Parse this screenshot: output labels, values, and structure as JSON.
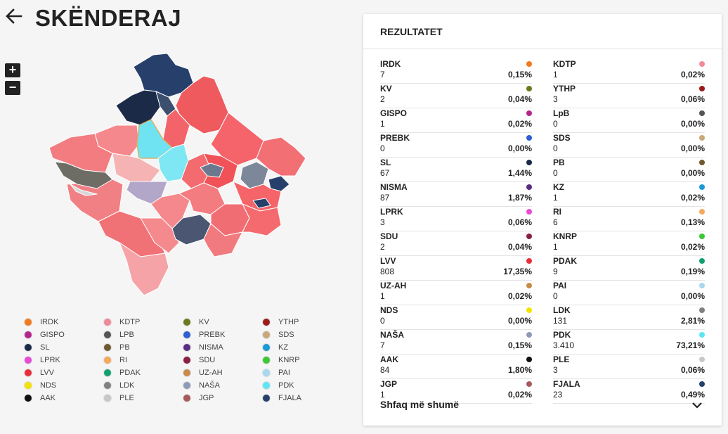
{
  "header": {
    "title": "SKËNDERAJ"
  },
  "zoom": {
    "in_label": "+",
    "out_label": "−"
  },
  "results": {
    "title": "REZULTATET",
    "show_more": "Shfaq më shumë",
    "left": [
      {
        "name": "IRDK",
        "votes": "7",
        "pct": "0,15%",
        "color": "#f07a1d"
      },
      {
        "name": "KV",
        "votes": "2",
        "pct": "0,04%",
        "color": "#6b7a1c"
      },
      {
        "name": "GISPO",
        "votes": "1",
        "pct": "0,02%",
        "color": "#b3268c"
      },
      {
        "name": "PREBK",
        "votes": "0",
        "pct": "0,00%",
        "color": "#2e5fd4"
      },
      {
        "name": "SL",
        "votes": "67",
        "pct": "1,44%",
        "color": "#1b2b47"
      },
      {
        "name": "NISMA",
        "votes": "87",
        "pct": "1,87%",
        "color": "#5b2d82"
      },
      {
        "name": "LPRK",
        "votes": "3",
        "pct": "0,06%",
        "color": "#e84bd8"
      },
      {
        "name": "SDU",
        "votes": "2",
        "pct": "0,04%",
        "color": "#8a1f45"
      },
      {
        "name": "LVV",
        "votes": "808",
        "pct": "17,35%",
        "color": "#e8303a"
      },
      {
        "name": "UZ-AH",
        "votes": "1",
        "pct": "0,02%",
        "color": "#c98b4a"
      },
      {
        "name": "NDS",
        "votes": "0",
        "pct": "0,00%",
        "color": "#f3e300"
      },
      {
        "name": "NAŠA",
        "votes": "7",
        "pct": "0,15%",
        "color": "#8e9bb8"
      },
      {
        "name": "AAK",
        "votes": "84",
        "pct": "1,80%",
        "color": "#111111"
      },
      {
        "name": "JGP",
        "votes": "1",
        "pct": "0,02%",
        "color": "#a85a5a"
      }
    ],
    "right": [
      {
        "name": "KDTP",
        "votes": "1",
        "pct": "0,02%",
        "color": "#f08a99"
      },
      {
        "name": "YTHP",
        "votes": "3",
        "pct": "0,06%",
        "color": "#9b1b1b"
      },
      {
        "name": "LpB",
        "votes": "0",
        "pct": "0,00%",
        "color": "#555555"
      },
      {
        "name": "SDS",
        "votes": "0",
        "pct": "0,00%",
        "color": "#c9a77a"
      },
      {
        "name": "PB",
        "votes": "0",
        "pct": "0,00%",
        "color": "#6e5a2e"
      },
      {
        "name": "KZ",
        "votes": "1",
        "pct": "0,02%",
        "color": "#1a9ad6"
      },
      {
        "name": "RI",
        "votes": "6",
        "pct": "0,13%",
        "color": "#f7a85a"
      },
      {
        "name": "KNRP",
        "votes": "1",
        "pct": "0,02%",
        "color": "#3cc832"
      },
      {
        "name": "PDAK",
        "votes": "9",
        "pct": "0,19%",
        "color": "#12a070"
      },
      {
        "name": "PAI",
        "votes": "0",
        "pct": "0,00%",
        "color": "#a8d8f0"
      },
      {
        "name": "LDK",
        "votes": "131",
        "pct": "2,81%",
        "color": "#808080"
      },
      {
        "name": "PDK",
        "votes": "3.410",
        "pct": "73,21%",
        "color": "#5ce6f5"
      },
      {
        "name": "PLE",
        "votes": "3",
        "pct": "0,06%",
        "color": "#c8c8c8"
      },
      {
        "name": "FJALA",
        "votes": "23",
        "pct": "0,49%",
        "color": "#26406b"
      }
    ]
  },
  "legend": [
    {
      "label": "IRDK",
      "color": "#f07a1d"
    },
    {
      "label": "KDTP",
      "color": "#f08a99"
    },
    {
      "label": "KV",
      "color": "#6b7a1c"
    },
    {
      "label": "YTHP",
      "color": "#9b1b1b"
    },
    {
      "label": "GISPO",
      "color": "#b3268c"
    },
    {
      "label": "LPB",
      "color": "#555555"
    },
    {
      "label": "PREBK",
      "color": "#2e5fd4"
    },
    {
      "label": "SDS",
      "color": "#c9a77a"
    },
    {
      "label": "SL",
      "color": "#1b2b47"
    },
    {
      "label": "PB",
      "color": "#6e5a2e"
    },
    {
      "label": "NISMA",
      "color": "#5b2d82"
    },
    {
      "label": "KZ",
      "color": "#1a9ad6"
    },
    {
      "label": "LPRK",
      "color": "#e84bd8"
    },
    {
      "label": "RI",
      "color": "#f7a85a"
    },
    {
      "label": "SDU",
      "color": "#8a1f45"
    },
    {
      "label": "KNRP",
      "color": "#3cc832"
    },
    {
      "label": "LVV",
      "color": "#e8303a"
    },
    {
      "label": "PDAK",
      "color": "#12a070"
    },
    {
      "label": "UZ-AH",
      "color": "#c98b4a"
    },
    {
      "label": "PAI",
      "color": "#a8d8f0"
    },
    {
      "label": "NDS",
      "color": "#f3e300"
    },
    {
      "label": "LDK",
      "color": "#808080"
    },
    {
      "label": "NAŠA",
      "color": "#8e9bb8"
    },
    {
      "label": "PDK",
      "color": "#5ce6f5"
    },
    {
      "label": "AAK",
      "color": "#111111"
    },
    {
      "label": "PLE",
      "color": "#c8c8c8"
    },
    {
      "label": "JGP",
      "color": "#a85a5a"
    },
    {
      "label": "FJALA",
      "color": "#26406b"
    }
  ],
  "icons": {
    "back": "arrow-left-icon",
    "expand": "chevron-down-icon"
  }
}
